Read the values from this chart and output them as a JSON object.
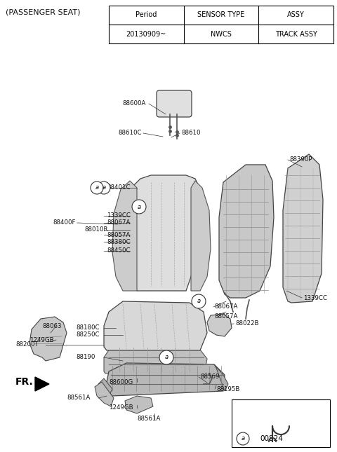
{
  "bg": "#ffffff",
  "title": "(PASSENGER SEAT)",
  "table": {
    "headers": [
      "Period",
      "SENSOR TYPE",
      "ASSY"
    ],
    "row": [
      "20130909~",
      "NWCS",
      "TRACK ASSY"
    ]
  },
  "legend": {
    "symbol": "a",
    "code": "00824"
  }
}
